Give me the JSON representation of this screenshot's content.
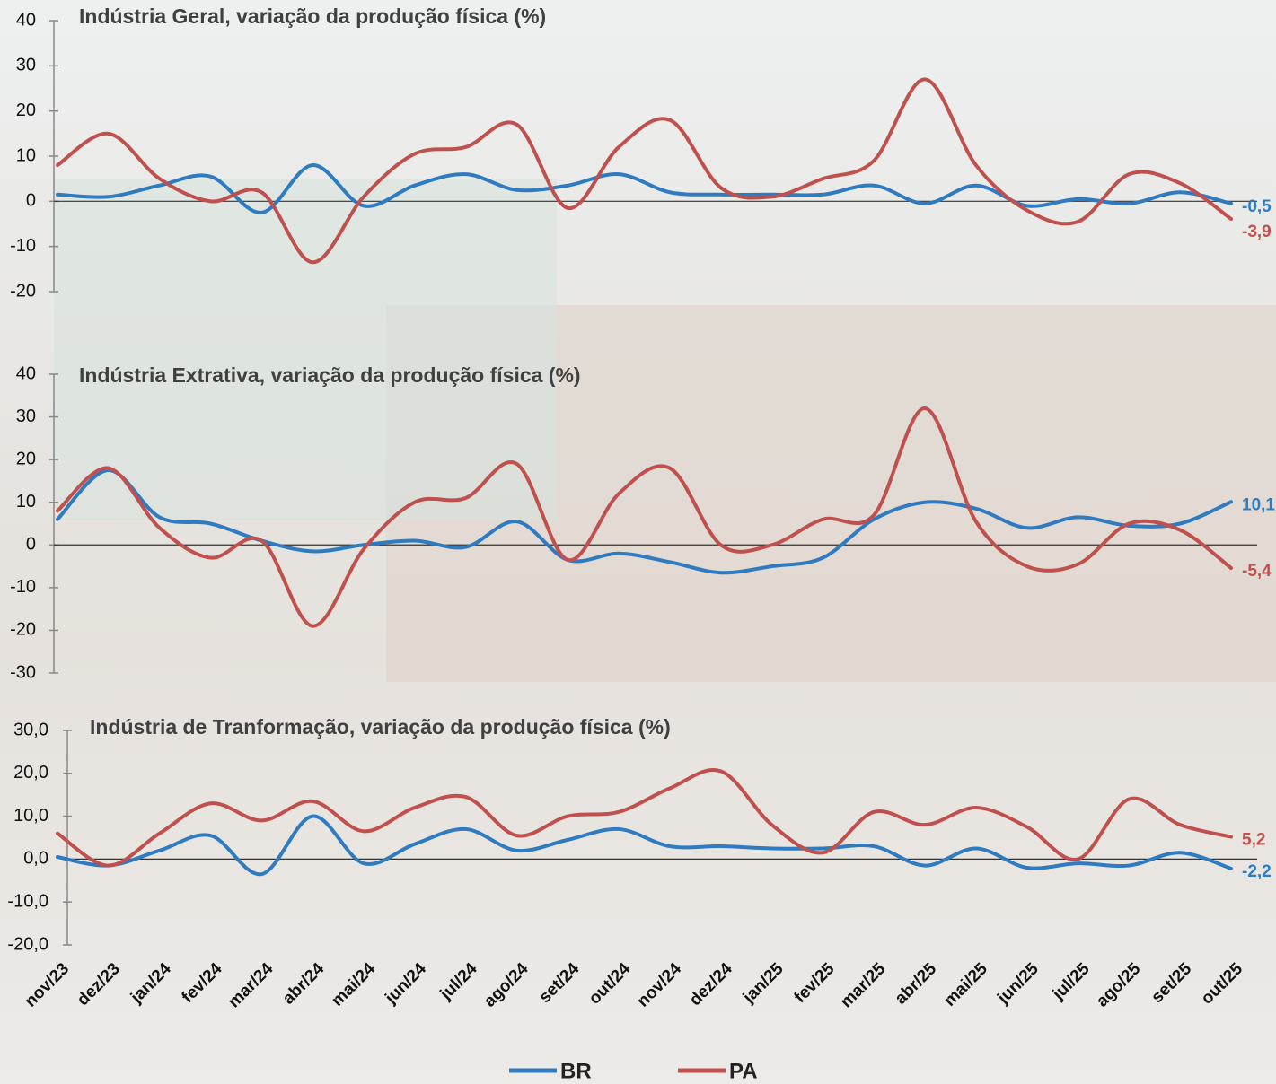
{
  "chart_data": [
    {
      "type": "line",
      "title": "Indústria Geral, variação da produção física (%)",
      "ylim": [
        -20,
        40
      ],
      "yticks": [
        -20,
        -10,
        0,
        10,
        20,
        30,
        40
      ],
      "series": [
        {
          "name": "BR",
          "color": "#2f7bc1",
          "values": [
            1.5,
            1,
            3.5,
            5.5,
            -2.5,
            8,
            -1,
            3.5,
            6,
            2.5,
            3.5,
            6,
            2,
            1.5,
            1.5,
            1.5,
            3.5,
            -0.5,
            3.5,
            -1,
            0.5,
            -0.5,
            2,
            -0.5
          ],
          "value_labels": [
            null,
            null,
            null,
            null,
            null,
            null,
            null,
            null,
            null,
            null,
            null,
            null,
            null,
            null,
            null,
            null,
            null,
            null,
            null,
            null,
            null,
            null,
            null,
            "-0,5"
          ]
        },
        {
          "name": "PA",
          "color": "#c0504d",
          "values": [
            8,
            15,
            5,
            0,
            2,
            -13.5,
            1,
            10.5,
            12,
            17,
            -1.5,
            12,
            18,
            3,
            1,
            5,
            9,
            27,
            8,
            -2,
            -4.5,
            6,
            4,
            -3.9
          ],
          "value_labels": [
            null,
            null,
            null,
            null,
            null,
            null,
            null,
            null,
            null,
            null,
            null,
            null,
            null,
            null,
            null,
            null,
            null,
            null,
            null,
            null,
            null,
            null,
            null,
            "-3,9"
          ]
        }
      ]
    },
    {
      "type": "line",
      "title": "Indústria Extrativa, variação da produção física (%)",
      "ylim": [
        -30,
        40
      ],
      "yticks": [
        -30,
        -20,
        -10,
        0,
        10,
        20,
        30,
        40
      ],
      "series": [
        {
          "color": "#2f7bc1",
          "values": [
            6,
            17.5,
            6.5,
            5,
            1,
            -1.5,
            0,
            1,
            -0.5,
            5.5,
            -3.5,
            -2,
            -4,
            -6.5,
            -5,
            -3,
            6,
            10,
            8.5,
            4,
            6.5,
            4.5,
            5,
            10.1
          ],
          "value_labels": [
            null,
            null,
            null,
            null,
            null,
            null,
            null,
            null,
            null,
            null,
            null,
            null,
            null,
            null,
            null,
            null,
            null,
            null,
            null,
            null,
            null,
            null,
            null,
            "10,1"
          ]
        },
        {
          "color": "#c0504d",
          "values": [
            8,
            18,
            4,
            -3,
            1,
            -19,
            -1,
            10,
            11,
            19,
            -3.5,
            12,
            18,
            0,
            0,
            6,
            7,
            32,
            5.5,
            -5,
            -4.5,
            5,
            3.5,
            -5.4
          ],
          "value_labels": [
            null,
            null,
            null,
            null,
            null,
            null,
            null,
            null,
            null,
            null,
            null,
            null,
            null,
            null,
            null,
            null,
            null,
            null,
            null,
            null,
            null,
            null,
            null,
            "-5,4"
          ]
        }
      ]
    },
    {
      "type": "line",
      "title": "Indústria de Tranformação, variação da produção física (%)",
      "categories": [
        "nov/23",
        "dez/23",
        "jan/24",
        "fev/24",
        "mar/24",
        "abr/24",
        "mai/24",
        "jun/24",
        "jul/24",
        "ago/24",
        "set/24",
        "out/24",
        "nov/24",
        "dez/24",
        "jan/25",
        "fev/25",
        "mar/25",
        "abr/25",
        "mai/25",
        "jun/25",
        "jul/25",
        "ago/25",
        "set/25",
        "out/25"
      ],
      "ylim": [
        -20,
        30
      ],
      "yticks": [
        {
          "value": -20,
          "label": "-20,0"
        },
        {
          "value": -10,
          "label": "-10,0"
        },
        {
          "value": 0,
          "label": "0,0"
        },
        {
          "value": 10,
          "label": "10,0"
        },
        {
          "value": 20,
          "label": "20,0"
        },
        {
          "value": 30,
          "label": "30,0"
        }
      ],
      "series": [
        {
          "color": "#2f7bc1",
          "values": [
            0.5,
            -1.5,
            2,
            5.5,
            -3.5,
            10,
            -1,
            3.5,
            7,
            2,
            4.5,
            7,
            3,
            3,
            2.5,
            2.5,
            3,
            -1.5,
            2.5,
            -2,
            -1,
            -1.5,
            1.5,
            -2.2
          ],
          "value_labels": [
            null,
            null,
            null,
            null,
            null,
            null,
            null,
            null,
            null,
            null,
            null,
            null,
            null,
            null,
            null,
            null,
            null,
            null,
            null,
            null,
            null,
            null,
            null,
            "-2,2"
          ]
        },
        {
          "color": "#c0504d",
          "values": [
            6,
            -1.5,
            6,
            13,
            9,
            13.5,
            6.5,
            12,
            14.5,
            5.5,
            10,
            11,
            16.5,
            20.5,
            8,
            1.5,
            11,
            8,
            12,
            7.5,
            0,
            14,
            8,
            5.2
          ],
          "value_labels": [
            null,
            null,
            null,
            null,
            null,
            null,
            null,
            null,
            null,
            null,
            null,
            null,
            null,
            null,
            null,
            null,
            null,
            null,
            null,
            null,
            null,
            null,
            null,
            "5,2"
          ]
        }
      ]
    }
  ]
}
